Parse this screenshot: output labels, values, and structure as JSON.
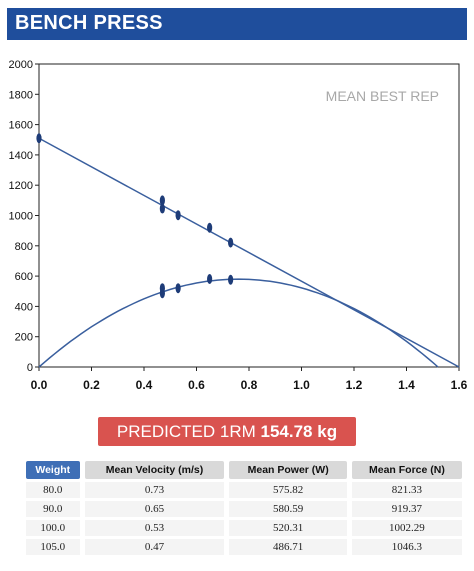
{
  "header": {
    "title": "BENCH PRESS"
  },
  "chart_data": {
    "type": "line",
    "title": "MEAN BEST REP",
    "xlim": [
      0,
      1.6
    ],
    "ylim": [
      0,
      2000
    ],
    "x_ticks": [
      "0.0",
      "0.2",
      "0.4",
      "0.6",
      "0.8",
      "1.0",
      "1.2",
      "1.4",
      "1.6"
    ],
    "y_ticks": [
      "0",
      "200",
      "400",
      "600",
      "800",
      "1000",
      "1200",
      "1400",
      "1600",
      "1800",
      "2000"
    ],
    "grid": false,
    "series": [
      {
        "kind": "force-velocity",
        "line": {
          "x": [
            0,
            1.6
          ],
          "y": [
            1510,
            0
          ]
        },
        "points": [
          {
            "x": 0.0,
            "y": 1510
          },
          {
            "x": 0.47,
            "y": 1046
          },
          {
            "x": 0.47,
            "y": 1100
          },
          {
            "x": 0.53,
            "y": 1002
          },
          {
            "x": 0.65,
            "y": 919
          },
          {
            "x": 0.73,
            "y": 821
          }
        ]
      },
      {
        "kind": "power-velocity",
        "curve": {
          "peak_x": 0.76,
          "peak_y": 580,
          "root_x": 1.52
        },
        "points": [
          {
            "x": 0.47,
            "y": 487
          },
          {
            "x": 0.47,
            "y": 520
          },
          {
            "x": 0.53,
            "y": 520
          },
          {
            "x": 0.65,
            "y": 581
          },
          {
            "x": 0.73,
            "y": 576
          }
        ]
      }
    ]
  },
  "prediction": {
    "label": "PREDICTED 1RM",
    "value": "154.78 kg"
  },
  "table": {
    "headers": [
      "Weight",
      "Mean Velocity (m/s)",
      "Mean Power (W)",
      "Mean Force (N)"
    ],
    "rows": [
      [
        "80.0",
        "0.73",
        "575.82",
        "821.33"
      ],
      [
        "90.0",
        "0.65",
        "580.59",
        "919.37"
      ],
      [
        "100.0",
        "0.53",
        "520.31",
        "1002.29"
      ],
      [
        "105.0",
        "0.47",
        "486.71",
        "1046.3"
      ]
    ]
  },
  "colors": {
    "header_bg": "#1f4e9c",
    "line": "#3a5f9e",
    "marker": "#1e3c78",
    "banner_bg": "#d9534f",
    "table_header_primary": "#3f6fb6"
  }
}
